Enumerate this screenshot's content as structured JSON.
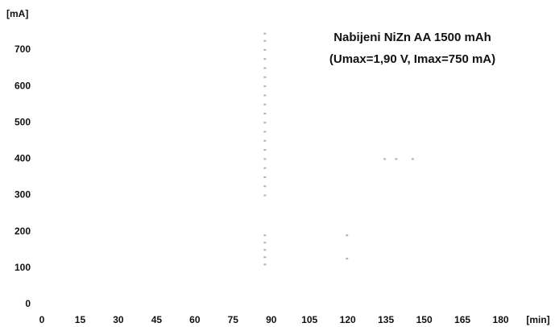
{
  "chart_data": {
    "type": "scatter",
    "title": "Nabijeni NiZn AA 1500 mAh",
    "subtitle": "(Umax=1,90 V, Imax=750 mA)",
    "y_label": "[mA]",
    "x_label": "[min]",
    "color": "#b0b0b0",
    "x": [
      87.5,
      87.5,
      87.5,
      87.5,
      87.5,
      87.5,
      87.5,
      87.5,
      87.5,
      87.5,
      87.5,
      87.5,
      87.5,
      87.5,
      87.5,
      87.5,
      87.5,
      87.5,
      87.5,
      87.5,
      87.5,
      87.5,
      87.5,
      87.5,
      119.7,
      119.7,
      134.5,
      139,
      145.5
    ],
    "values": [
      110,
      130,
      150,
      170,
      190,
      300,
      325,
      350,
      375,
      400,
      425,
      450,
      475,
      500,
      525,
      550,
      575,
      600,
      625,
      650,
      675,
      700,
      725,
      745,
      190,
      126,
      400,
      400,
      400
    ],
    "xlim": [
      0,
      195
    ],
    "ylim": [
      0,
      750
    ],
    "xticks": [
      0,
      15,
      30,
      45,
      60,
      75,
      90,
      105,
      120,
      135,
      150,
      165,
      180
    ],
    "yticks": [
      0,
      100,
      200,
      300,
      400,
      500,
      600,
      700
    ],
    "grid": false
  }
}
